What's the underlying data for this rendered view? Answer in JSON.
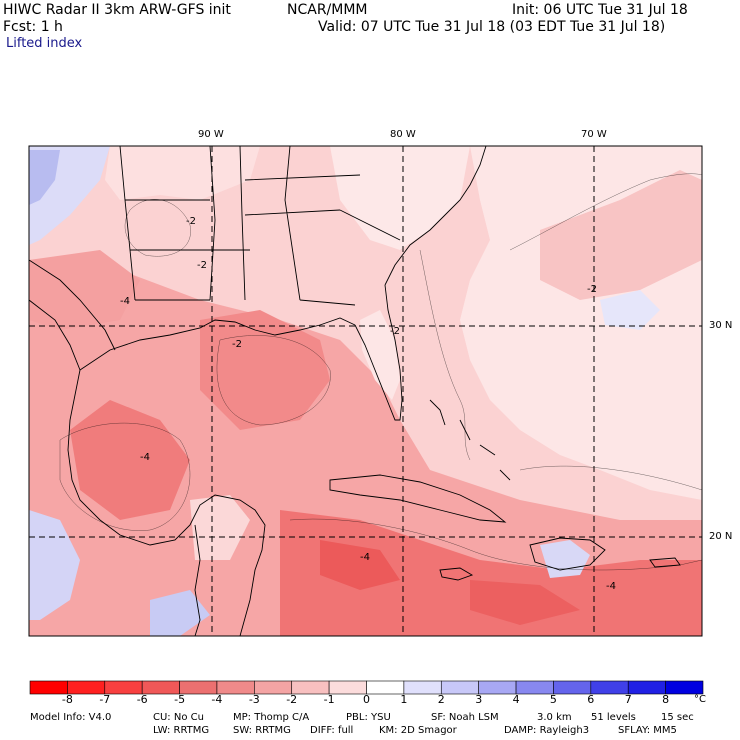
{
  "header": {
    "model": "HIWC Radar II 3km ARW-GFS init",
    "org": "NCAR/MMM",
    "forecast": "Fcst:    1 h",
    "field": "Lifted index",
    "init": "Init: 06 UTC Tue 31 Jul 18",
    "valid": "Valid: 07 UTC Tue 31 Jul 18 (03 EDT Tue 31 Jul 18)"
  },
  "map": {
    "lon_labels": [
      "90 W",
      "80 W",
      "70 W"
    ],
    "lat_labels": [
      "30 N",
      "20 N"
    ],
    "contour_labels": [
      "-2",
      "-2",
      "-2",
      "-4",
      "-4",
      "-2",
      "-2",
      "-4",
      "-4"
    ],
    "colors": {
      "base": "#fbd2d2",
      "mid": "#f8a8a8",
      "strong": "#f07878",
      "deep": "#e84848",
      "pale": "#fde8e8",
      "blue": "#c6c8f4"
    }
  },
  "colorbar": {
    "labels": [
      "-8",
      "-7",
      "-6",
      "-5",
      "-4",
      "-3",
      "-2",
      "-1",
      "0",
      "1",
      "2",
      "3",
      "4",
      "5",
      "6",
      "7",
      "8"
    ],
    "unit": "°C",
    "colors": [
      "#ff0000",
      "#ff2020",
      "#f84040",
      "#f05858",
      "#ec7070",
      "#f08a8a",
      "#f4a4a4",
      "#f8c0c0",
      "#fcdcdc",
      "#ffffff",
      "#e0e0fc",
      "#c8c8f8",
      "#a8a8f4",
      "#8888f0",
      "#6464ec",
      "#4040e8",
      "#2020e4",
      "#0000e0"
    ]
  },
  "footer": {
    "line1": [
      "Model Info: V4.0",
      "CU: No Cu",
      "MP: Thomp C/A",
      "PBL: YSU",
      "SF: Noah LSM",
      "3.0 km",
      "51 levels",
      "15 sec"
    ],
    "line2": [
      "LW: RRTMG",
      "SW: RRTMG",
      "DIFF: full",
      "KM: 2D Smagor",
      "DAMP: Rayleigh3",
      "SFLAY: MM5"
    ]
  }
}
